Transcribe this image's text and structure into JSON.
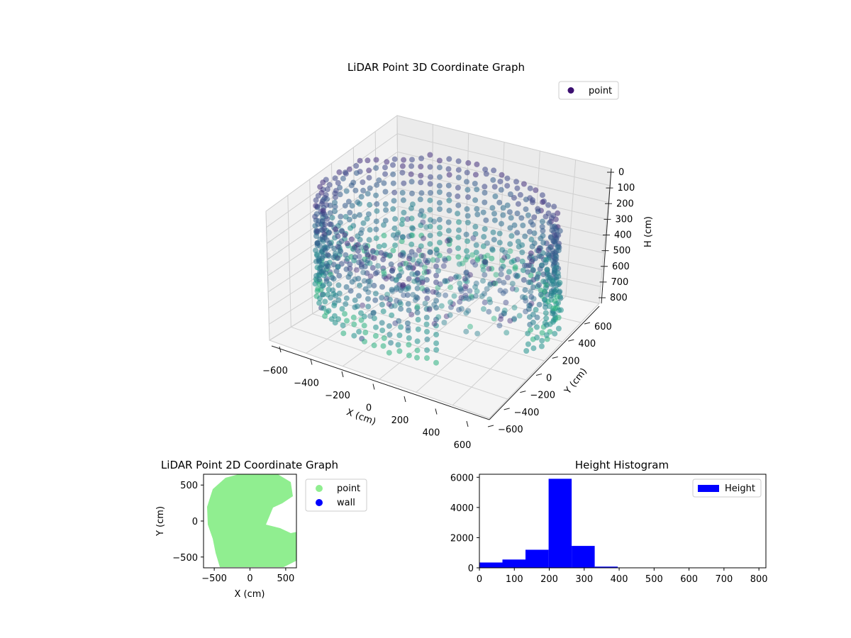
{
  "chart_data": [
    {
      "type": "scatter",
      "title": "LiDAR Point 3D Coordinate Graph",
      "xlabel": "X (cm)",
      "ylabel": "Y (cm)",
      "zlabel": "H (cm)",
      "xlim": [
        -600,
        600
      ],
      "ylim": [
        -600,
        600
      ],
      "zlim": [
        0,
        800
      ],
      "z_inverted": true,
      "xticks": [
        "−600",
        "−400",
        "−200",
        "0",
        "200",
        "400",
        "600"
      ],
      "yticks": [
        "−600",
        "−400",
        "−200",
        "0",
        "200",
        "400",
        "600"
      ],
      "zticks": [
        "0",
        "100",
        "200",
        "300",
        "400",
        "500",
        "600",
        "700",
        "800"
      ],
      "legend": [
        "point"
      ],
      "legend_position": "top-right",
      "colormap": "viridis",
      "legend_color": "#3b0f70",
      "grid": true,
      "series": [
        {
          "name": "point",
          "description_shape": "ring (wall)",
          "ring_radius_cm": 600,
          "height_range_cm": [
            100,
            700
          ]
        }
      ]
    },
    {
      "type": "scatter",
      "title": "LiDAR Point 2D Coordinate Graph",
      "xlabel": "X (cm)",
      "ylabel": "Y (cm)",
      "xlim": [
        -650,
        650
      ],
      "ylim": [
        -650,
        650
      ],
      "xticks": [
        "−500",
        "0",
        "500"
      ],
      "yticks": [
        "500",
        "0",
        "−500"
      ],
      "legend": [
        {
          "name": "point",
          "color": "#90ee90"
        },
        {
          "name": "wall",
          "color": "#0000ff"
        }
      ],
      "legend_position": "outside-right"
    },
    {
      "type": "bar",
      "title": "Height Histogram",
      "xlabel": "",
      "ylabel": "",
      "xlim": [
        0,
        820
      ],
      "ylim": [
        0,
        6200
      ],
      "xticks": [
        "0",
        "100",
        "200",
        "300",
        "400",
        "500",
        "600",
        "700",
        "800"
      ],
      "yticks": [
        "0",
        "2000",
        "4000",
        "6000"
      ],
      "bin_edges": [
        0,
        66,
        132,
        198,
        264,
        330,
        396,
        462,
        528,
        594,
        660,
        726,
        792
      ],
      "values": [
        350,
        550,
        1200,
        5900,
        1450,
        80,
        15,
        10,
        8,
        5,
        5,
        3
      ],
      "series": [
        {
          "name": "Height",
          "color": "#0000ff"
        }
      ],
      "legend_position": "top-right"
    }
  ]
}
